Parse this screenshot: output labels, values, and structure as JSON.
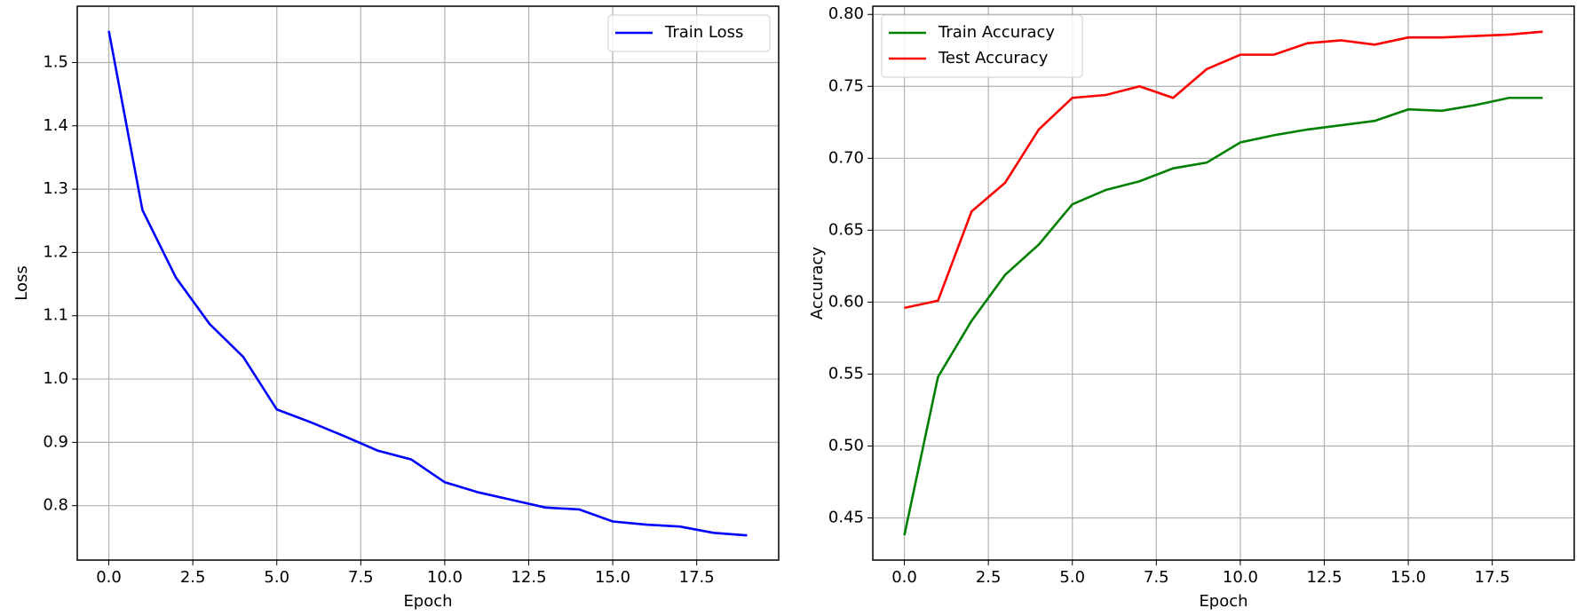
{
  "chart_data": [
    {
      "type": "line",
      "x_label": "Epoch",
      "y_label": "Loss",
      "x": [
        0,
        1,
        2,
        3,
        4,
        5,
        6,
        7,
        8,
        9,
        10,
        11,
        12,
        13,
        14,
        15,
        16,
        17,
        18,
        19
      ],
      "series": [
        {
          "name": "Train Loss",
          "color": "#0000ff",
          "values": [
            1.55,
            1.267,
            1.16,
            1.087,
            1.035,
            0.952,
            0.932,
            0.91,
            0.887,
            0.873,
            0.837,
            0.821,
            0.809,
            0.797,
            0.794,
            0.775,
            0.77,
            0.767,
            0.757,
            0.753
          ]
        }
      ],
      "xlim": [
        -0.94,
        19.94
      ],
      "ylim": [
        0.714,
        1.589
      ],
      "xticks": [
        {
          "value": 0,
          "label": "0.0"
        },
        2.5,
        {
          "value": 5,
          "label": "5.0"
        },
        7.5,
        {
          "value": 10,
          "label": "10.0"
        },
        12.5,
        {
          "value": 15,
          "label": "15.0"
        },
        17.5
      ],
      "yticks": [
        0.8,
        0.9,
        {
          "value": 1,
          "label": "1.0"
        },
        1.1,
        1.2,
        1.3,
        1.4,
        1.5
      ],
      "grid": true,
      "legend": "upper-right"
    },
    {
      "type": "line",
      "x_label": "Epoch",
      "y_label": "Accuracy",
      "x": [
        0,
        1,
        2,
        3,
        4,
        5,
        6,
        7,
        8,
        9,
        10,
        11,
        12,
        13,
        14,
        15,
        16,
        17,
        18,
        19
      ],
      "series": [
        {
          "name": "Train Accuracy",
          "color": "#008000",
          "values": [
            0.438,
            0.548,
            0.587,
            0.619,
            0.64,
            0.668,
            0.678,
            0.684,
            0.693,
            0.697,
            0.711,
            0.716,
            0.72,
            0.723,
            0.726,
            0.734,
            0.733,
            0.737,
            0.742,
            0.742
          ]
        },
        {
          "name": "Test Accuracy",
          "color": "#ff0000",
          "values": [
            0.596,
            0.601,
            0.663,
            0.683,
            0.72,
            0.742,
            0.744,
            0.75,
            0.742,
            0.762,
            0.772,
            0.772,
            0.78,
            0.782,
            0.779,
            0.784,
            0.784,
            0.785,
            0.786,
            0.788
          ]
        }
      ],
      "xlim": [
        -0.94,
        19.94
      ],
      "ylim": [
        0.4207,
        0.8057
      ],
      "xticks": [
        {
          "value": 0,
          "label": "0.0"
        },
        2.5,
        {
          "value": 5,
          "label": "5.0"
        },
        7.5,
        {
          "value": 10,
          "label": "10.0"
        },
        12.5,
        {
          "value": 15,
          "label": "15.0"
        },
        17.5
      ],
      "yticks": [
        0.45,
        {
          "value": 0.5,
          "label": "0.50"
        },
        0.55,
        {
          "value": 0.6,
          "label": "0.60"
        },
        0.65,
        {
          "value": 0.7,
          "label": "0.70"
        },
        0.75,
        {
          "value": 0.8,
          "label": "0.80"
        }
      ],
      "grid": true,
      "legend": "upper-left"
    }
  ]
}
